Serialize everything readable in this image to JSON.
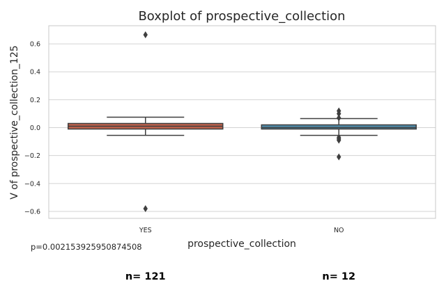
{
  "chart_data": {
    "type": "boxplot",
    "title": "Boxplot of prospective_collection",
    "xlabel": "prospective_collection",
    "ylabel": "V of prospective_collection_125",
    "ylim": [
      -0.65,
      0.73
    ],
    "yticks": [
      -0.6,
      -0.4,
      -0.2,
      0.0,
      0.2,
      0.4,
      0.6
    ],
    "ytick_labels": [
      "−0.6",
      "−0.4",
      "−0.2",
      "0.0",
      "0.2",
      "0.4",
      "0.6"
    ],
    "grid": true,
    "categories": [
      "YES",
      "NO"
    ],
    "boxes": [
      {
        "category": "YES",
        "color": "#c0614b",
        "q1": -0.01,
        "median": 0.01,
        "q3": 0.03,
        "whisker_low": -0.055,
        "whisker_high": 0.075,
        "fliers": [
          0.665,
          -0.58
        ]
      },
      {
        "category": "NO",
        "color": "#4f8aa8",
        "q1": -0.01,
        "median": 0.0,
        "q3": 0.02,
        "whisker_low": -0.055,
        "whisker_high": 0.065,
        "fliers": [
          0.12,
          0.1,
          0.07,
          -0.07,
          -0.08,
          -0.09,
          -0.21
        ]
      }
    ],
    "annotations": {
      "p_value": "p=0.002153925950874508",
      "counts": [
        "n= 121",
        "n= 12"
      ]
    }
  }
}
